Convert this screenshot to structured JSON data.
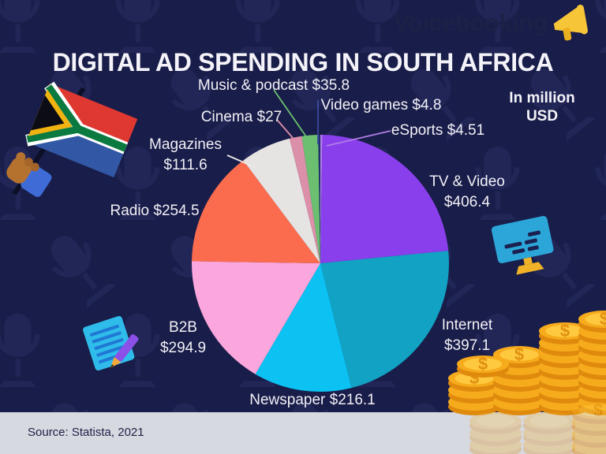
{
  "title": "DIGITAL AD SPENDING IN SOUTH AFRICA",
  "unit_note": {
    "line1": "In million",
    "line2": "USD"
  },
  "footer": {
    "source": "Source: Statista, 2021",
    "brand": "Voicebooking"
  },
  "chart_data": {
    "type": "pie",
    "title": "Digital Ad Spending in South Africa",
    "unit": "million USD",
    "start_angle_deg": 0,
    "direction": "clockwise",
    "source": "Statista, 2021",
    "series": [
      {
        "label": "eSports",
        "value": 4.51,
        "color": "#b07de6"
      },
      {
        "label": "TV & Video",
        "value": 406.4,
        "color": "#8a3fec"
      },
      {
        "label": "Internet",
        "value": 397.1,
        "color": "#12a2c3"
      },
      {
        "label": "Newspaper",
        "value": 216.1,
        "color": "#0cc2f2"
      },
      {
        "label": "B2B",
        "value": 294.9,
        "color": "#fba6dc"
      },
      {
        "label": "Radio",
        "value": 254.5,
        "color": "#fb6c4f"
      },
      {
        "label": "Magazines",
        "value": 111.6,
        "color": "#e6e4e2"
      },
      {
        "label": "Cinema",
        "value": 27,
        "color": "#dc8fa9"
      },
      {
        "label": "Music & podcast",
        "value": 35.8,
        "color": "#6cbf70"
      },
      {
        "label": "Video games",
        "value": 4.8,
        "color": "#20306f"
      }
    ]
  },
  "decorations": {
    "background_pattern": "microphone-icon",
    "icons": [
      "south-africa-flag-icon",
      "hand-holding-flag-icon",
      "monitor-icon",
      "notepad-pencil-icon",
      "gold-coins-icon",
      "megaphone-icon"
    ],
    "colors": {
      "background": "#191d49",
      "footer_bar": "#d7d9e0",
      "text": "#f1f0f6",
      "brand_text": "#1d2148",
      "coin_gold": "#f4a71b"
    }
  }
}
